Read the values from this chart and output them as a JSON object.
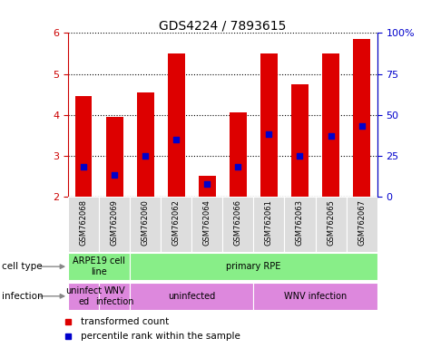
{
  "title": "GDS4224 / 7893615",
  "samples": [
    "GSM762068",
    "GSM762069",
    "GSM762060",
    "GSM762062",
    "GSM762064",
    "GSM762066",
    "GSM762061",
    "GSM762063",
    "GSM762065",
    "GSM762067"
  ],
  "transformed_counts": [
    4.45,
    3.95,
    4.55,
    5.5,
    2.5,
    4.05,
    5.5,
    4.75,
    5.5,
    5.85
  ],
  "percentile_ranks_pct": [
    18,
    13,
    25,
    35,
    8,
    18,
    38,
    25,
    37,
    43
  ],
  "ylim_left": [
    2.0,
    6.0
  ],
  "ylim_right_labels": [
    "0",
    "25",
    "50",
    "75",
    "100%"
  ],
  "yticks_left": [
    2,
    3,
    4,
    5,
    6
  ],
  "yticks_right_pct": [
    0,
    25,
    50,
    75,
    100
  ],
  "bar_color": "#dd0000",
  "dot_color": "#0000cc",
  "bar_width": 0.55,
  "dot_size": 22,
  "cell_type_labels": [
    {
      "text": "ARPE19 cell\nline",
      "span": [
        0,
        2
      ],
      "color": "#88ee88"
    },
    {
      "text": "primary RPE",
      "span": [
        2,
        10
      ],
      "color": "#88ee88"
    }
  ],
  "infection_labels": [
    {
      "text": "uninfect\ned",
      "span": [
        0,
        1
      ],
      "color": "#dd88dd"
    },
    {
      "text": "WNV\ninfection",
      "span": [
        1,
        2
      ],
      "color": "#dd88dd"
    },
    {
      "text": "uninfected",
      "span": [
        2,
        6
      ],
      "color": "#dd88dd"
    },
    {
      "text": "WNV infection",
      "span": [
        6,
        10
      ],
      "color": "#dd88dd"
    }
  ],
  "cell_type_row_label": "cell type",
  "infection_row_label": "infection",
  "legend_items": [
    {
      "color": "#dd0000",
      "marker": "s",
      "label": "transformed count"
    },
    {
      "color": "#0000cc",
      "marker": "s",
      "label": "percentile rank within the sample"
    }
  ],
  "tick_label_color_left": "#cc0000",
  "tick_label_color_right": "#0000cc",
  "gridline_style": {
    "color": "black",
    "linestyle": "dotted",
    "linewidth": 0.8
  }
}
